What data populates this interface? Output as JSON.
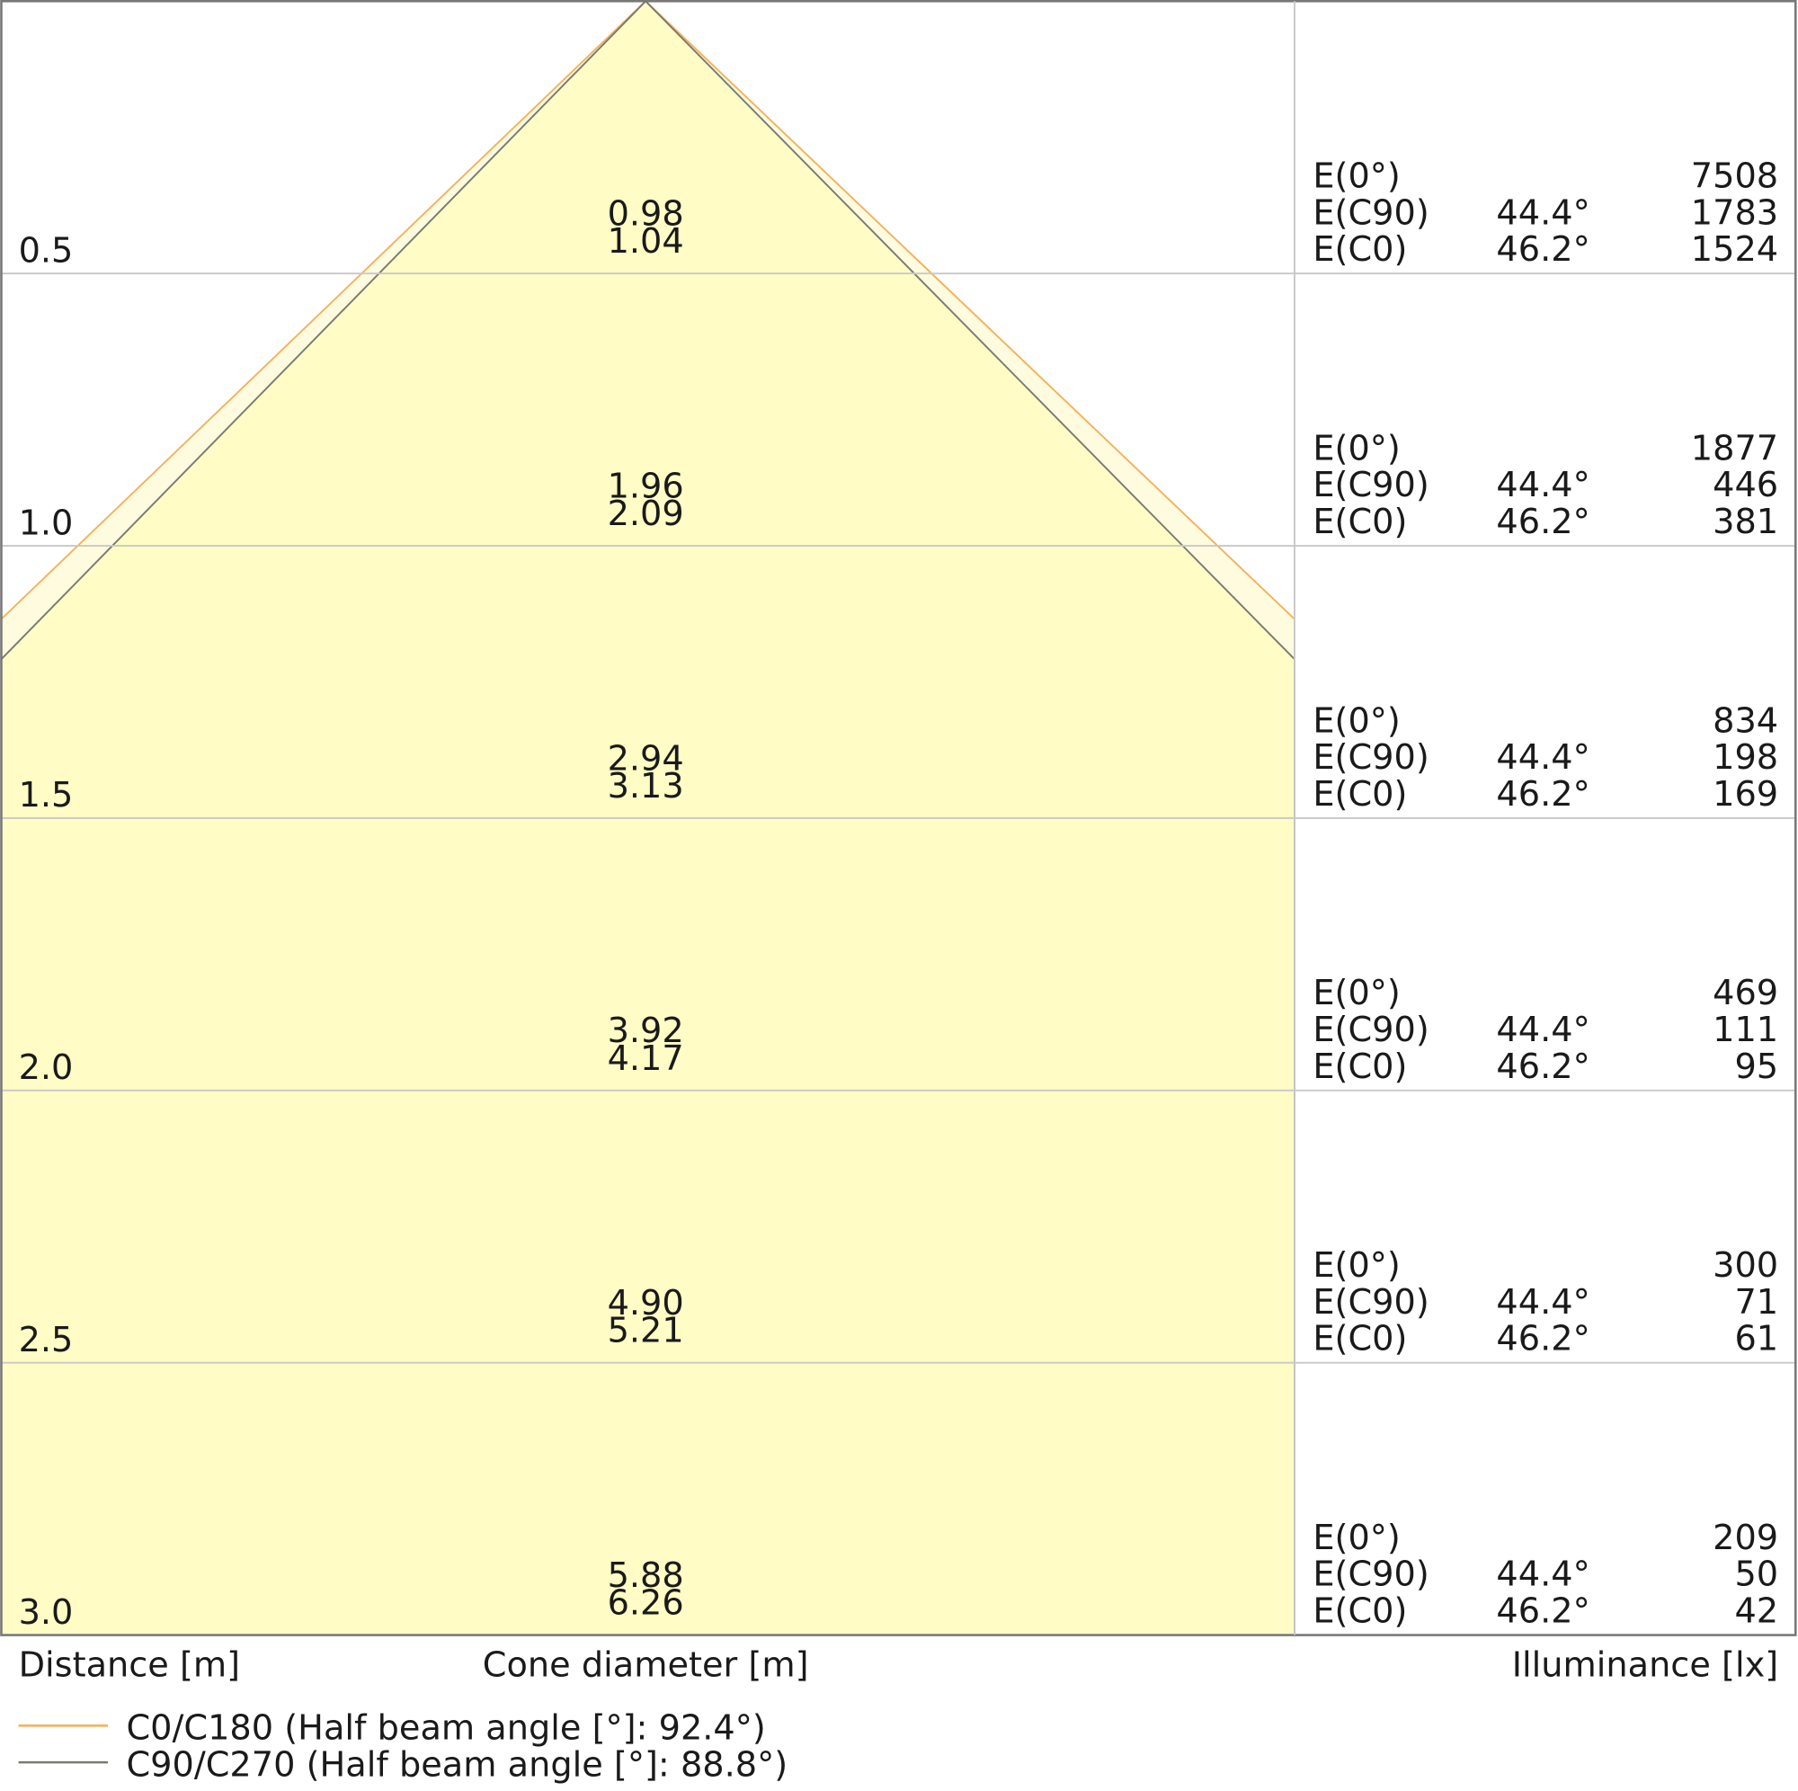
{
  "chart_data": {
    "type": "table",
    "distance_label": "Distance [m]",
    "cone_label": "Cone diameter [m]",
    "illuminance_label": "Illuminance [lx]",
    "distance_range": [
      0,
      3.0
    ],
    "colors": {
      "c0": "#f5b25a",
      "c90": "#7a7a72",
      "fill": "#fffcc5",
      "fill_outer": "#fffbdf",
      "grid": "#c8c8c8"
    },
    "legend": [
      {
        "label": "C0/C180 (Half beam angle [°]: 92.4°)",
        "color": "#f5b25a",
        "half_angle": 46.2
      },
      {
        "label": "C90/C270 (Half beam angle [°]: 88.8°)",
        "color": "#7a7a72",
        "half_angle": 44.4
      }
    ],
    "rows": [
      {
        "distance": "0.5",
        "cone": [
          "0.98",
          "1.04"
        ],
        "E0": "7508",
        "EC90": "1783",
        "EC0": "1524"
      },
      {
        "distance": "1.0",
        "cone": [
          "1.96",
          "2.09"
        ],
        "E0": "1877",
        "EC90": "446",
        "EC0": "381"
      },
      {
        "distance": "1.5",
        "cone": [
          "2.94",
          "3.13"
        ],
        "E0": "834",
        "EC90": "198",
        "EC0": "169"
      },
      {
        "distance": "2.0",
        "cone": [
          "3.92",
          "4.17"
        ],
        "E0": "469",
        "EC90": "111",
        "EC0": "95"
      },
      {
        "distance": "2.5",
        "cone": [
          "4.90",
          "5.21"
        ],
        "E0": "300",
        "EC90": "71",
        "EC0": "61"
      },
      {
        "distance": "3.0",
        "cone": [
          "5.88",
          "6.26"
        ],
        "E0": "209",
        "EC90": "50",
        "EC0": "42"
      }
    ],
    "row_labels": {
      "e0": "E(0°)",
      "ec90": "E(C90)",
      "ec0": "E(C0)"
    },
    "angles": {
      "c90": "44.4°",
      "c0": "46.2°"
    }
  }
}
